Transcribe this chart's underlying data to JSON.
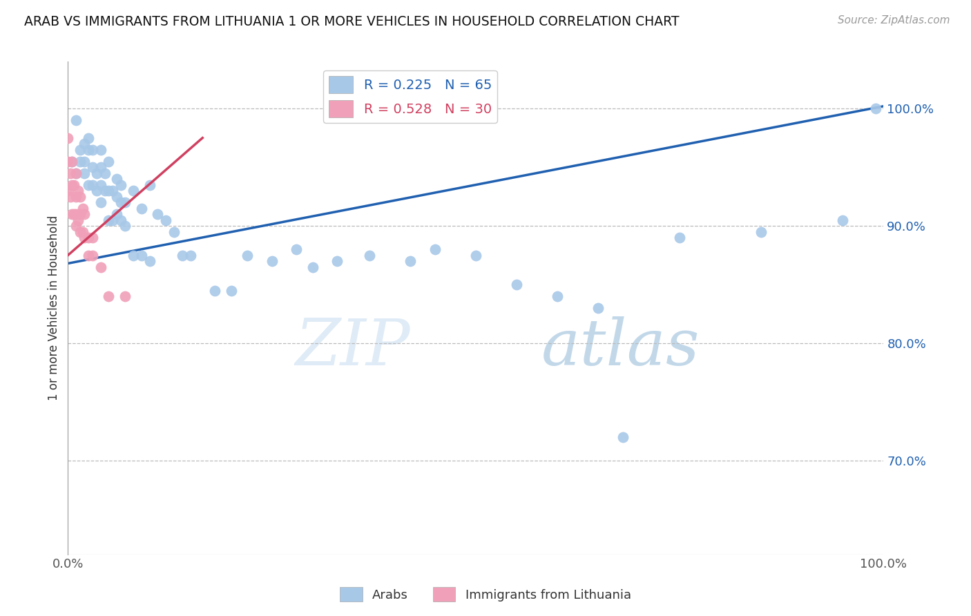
{
  "title": "ARAB VS IMMIGRANTS FROM LITHUANIA 1 OR MORE VEHICLES IN HOUSEHOLD CORRELATION CHART",
  "source": "Source: ZipAtlas.com",
  "ylabel": "1 or more Vehicles in Household",
  "ytick_labels": [
    "70.0%",
    "80.0%",
    "90.0%",
    "100.0%"
  ],
  "ytick_values": [
    0.7,
    0.8,
    0.9,
    1.0
  ],
  "xmin": 0.0,
  "xmax": 1.0,
  "ymin": 0.62,
  "ymax": 1.04,
  "legend_bottom": [
    "Arabs",
    "Immigrants from Lithuania"
  ],
  "legend_top_blue": "R = 0.225   N = 65",
  "legend_top_pink": "R = 0.528   N = 30",
  "blue_color": "#A8C8E8",
  "pink_color": "#F0A0B8",
  "blue_line_color": "#2060B0",
  "pink_line_color": "#D04060",
  "watermark_zip": "ZIP",
  "watermark_atlas": "atlas",
  "blue_line_x0": 0.0,
  "blue_line_y0": 0.868,
  "blue_line_x1": 1.0,
  "blue_line_y1": 1.002,
  "pink_line_x0": 0.0,
  "pink_line_x1": 0.165,
  "pink_line_y0": 0.875,
  "pink_line_y1": 0.975,
  "blue_scatter_x": [
    0.005,
    0.01,
    0.01,
    0.015,
    0.015,
    0.02,
    0.02,
    0.02,
    0.025,
    0.025,
    0.025,
    0.03,
    0.03,
    0.03,
    0.035,
    0.035,
    0.04,
    0.04,
    0.04,
    0.04,
    0.045,
    0.045,
    0.05,
    0.05,
    0.05,
    0.055,
    0.055,
    0.06,
    0.06,
    0.06,
    0.065,
    0.065,
    0.065,
    0.07,
    0.07,
    0.08,
    0.08,
    0.09,
    0.09,
    0.1,
    0.1,
    0.11,
    0.12,
    0.13,
    0.14,
    0.15,
    0.18,
    0.2,
    0.22,
    0.25,
    0.28,
    0.3,
    0.33,
    0.37,
    0.42,
    0.45,
    0.5,
    0.55,
    0.6,
    0.65,
    0.68,
    0.75,
    0.85,
    0.95,
    0.99
  ],
  "blue_scatter_y": [
    0.955,
    0.945,
    0.99,
    0.955,
    0.965,
    0.97,
    0.945,
    0.955,
    0.935,
    0.965,
    0.975,
    0.935,
    0.95,
    0.965,
    0.93,
    0.945,
    0.92,
    0.935,
    0.95,
    0.965,
    0.93,
    0.945,
    0.905,
    0.93,
    0.955,
    0.905,
    0.93,
    0.91,
    0.925,
    0.94,
    0.905,
    0.92,
    0.935,
    0.9,
    0.92,
    0.875,
    0.93,
    0.875,
    0.915,
    0.87,
    0.935,
    0.91,
    0.905,
    0.895,
    0.875,
    0.875,
    0.845,
    0.845,
    0.875,
    0.87,
    0.88,
    0.865,
    0.87,
    0.875,
    0.87,
    0.88,
    0.875,
    0.85,
    0.84,
    0.83,
    0.72,
    0.89,
    0.895,
    0.905,
    1.0
  ],
  "pink_scatter_x": [
    0.0,
    0.0,
    0.0,
    0.003,
    0.003,
    0.005,
    0.005,
    0.005,
    0.007,
    0.007,
    0.01,
    0.01,
    0.01,
    0.01,
    0.012,
    0.012,
    0.015,
    0.015,
    0.015,
    0.018,
    0.018,
    0.02,
    0.02,
    0.025,
    0.025,
    0.03,
    0.03,
    0.04,
    0.05,
    0.07
  ],
  "pink_scatter_y": [
    0.93,
    0.955,
    0.975,
    0.925,
    0.945,
    0.91,
    0.935,
    0.955,
    0.91,
    0.935,
    0.9,
    0.91,
    0.925,
    0.945,
    0.905,
    0.93,
    0.895,
    0.91,
    0.925,
    0.895,
    0.915,
    0.89,
    0.91,
    0.875,
    0.89,
    0.875,
    0.89,
    0.865,
    0.84,
    0.84
  ]
}
